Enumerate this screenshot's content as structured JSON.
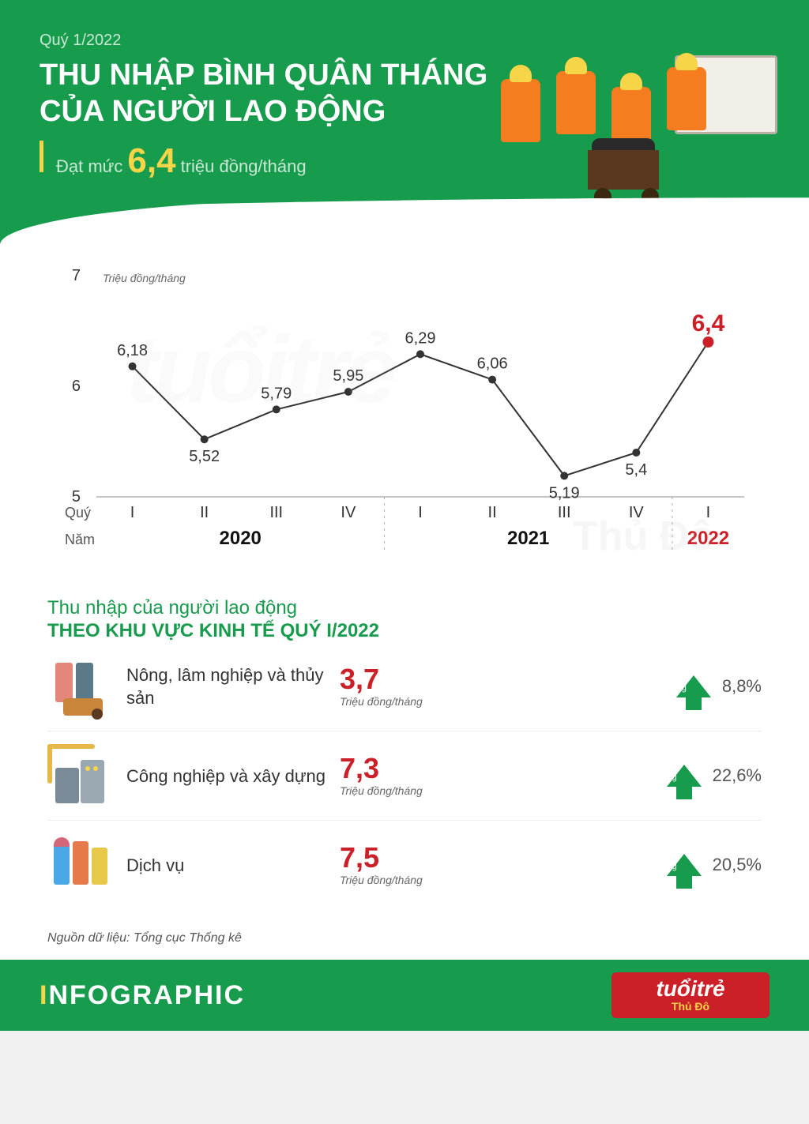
{
  "header": {
    "quarter_label": "Quý 1/2022",
    "title_line1": "THU NHẬP BÌNH QUÂN THÁNG",
    "title_line2": "CỦA NGƯỜI LAO ĐỘNG",
    "sub_prefix": "Đạt mức",
    "big_number": "6,4",
    "sub_suffix": "triệu đồng/tháng"
  },
  "chart": {
    "type": "line",
    "y_unit_label": "Triệu đồng/tháng",
    "y_axis": {
      "min": 5,
      "max": 7,
      "ticks": [
        5,
        6,
        7
      ]
    },
    "quarter_row_label": "Quý",
    "year_row_label": "Năm",
    "line_color": "#333333",
    "highlight_color": "#cb2027",
    "marker_size": 5,
    "line_width": 2,
    "background_color": "#ffffff",
    "label_fontsize": 20,
    "highlight_fontsize": 30,
    "points": [
      {
        "quarter": "I",
        "year_group": "2020",
        "value": 6.18,
        "label": "6,18",
        "highlight": false
      },
      {
        "quarter": "II",
        "year_group": "2020",
        "value": 5.52,
        "label": "5,52",
        "highlight": false
      },
      {
        "quarter": "III",
        "year_group": "2020",
        "value": 5.79,
        "label": "5,79",
        "highlight": false
      },
      {
        "quarter": "IV",
        "year_group": "2020",
        "value": 5.95,
        "label": "5,95",
        "highlight": false
      },
      {
        "quarter": "I",
        "year_group": "2021",
        "value": 6.29,
        "label": "6,29",
        "highlight": false
      },
      {
        "quarter": "II",
        "year_group": "2021",
        "value": 6.06,
        "label": "6,06",
        "highlight": false
      },
      {
        "quarter": "III",
        "year_group": "2021",
        "value": 5.19,
        "label": "5,19",
        "highlight": false
      },
      {
        "quarter": "IV",
        "year_group": "2021",
        "value": 5.4,
        "label": "5,4",
        "highlight": false
      },
      {
        "quarter": "I",
        "year_group": "2022",
        "value": 6.4,
        "label": "6,4",
        "highlight": true
      }
    ],
    "years": [
      "2020",
      "2021",
      "2022"
    ],
    "year_highlight": "2022"
  },
  "section2": {
    "title_line1": "Thu nhập của người lao động",
    "title_line2": "THEO KHU VỰC KINH TẾ QUÝ I/2022",
    "unit_label": "Triệu đồng/tháng",
    "arrow_text": "Tăng",
    "value_color": "#cb2027",
    "arrow_color": "#179b4c",
    "sectors": [
      {
        "icon": "agriculture",
        "name": "Nông, lâm nghiệp và thủy sản",
        "value": "3,7",
        "change": "8,8%"
      },
      {
        "icon": "industry",
        "name": "Công nghiệp và xây dựng",
        "value": "7,3",
        "change": "22,6%"
      },
      {
        "icon": "services",
        "name": "Dịch vụ",
        "value": "7,5",
        "change": "20,5%"
      }
    ]
  },
  "source": "Nguồn dữ liệu: Tổng cục Thống kê",
  "footer": {
    "brand_word": "NFOGRAPHIC",
    "logo_main": "tuổitrẻ",
    "logo_sub": "Thủ Đô"
  },
  "watermark": {
    "big": "tuổitrẻ",
    "small": "Thủ Đô"
  },
  "colors": {
    "primary_green": "#179b4c",
    "accent_yellow": "#f7d548",
    "accent_red": "#cb2027",
    "worker_orange": "#f57c1f",
    "text_dark": "#333333",
    "text_muted": "#666666"
  }
}
